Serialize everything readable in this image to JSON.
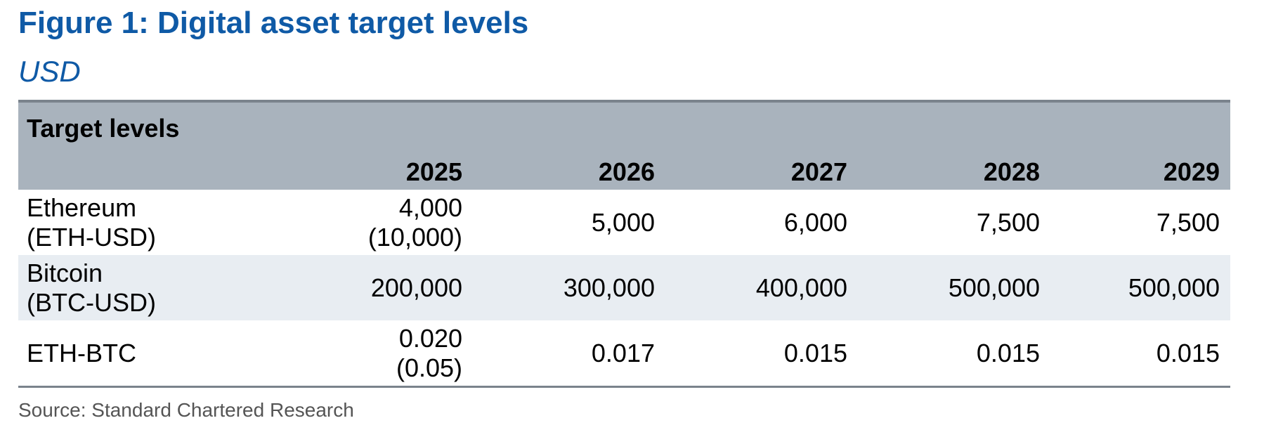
{
  "figure": {
    "title": "Figure 1: Digital asset target levels",
    "subtitle": "USD"
  },
  "table": {
    "group_header": "Target levels",
    "years": [
      "2025",
      "2026",
      "2027",
      "2028",
      "2029"
    ],
    "rows": [
      {
        "label_line1": "Ethereum",
        "label_line2": "(ETH-USD)",
        "v2025_line1": "4,000",
        "v2025_line2": "(10,000)",
        "v2026": "5,000",
        "v2027": "6,000",
        "v2028": "7,500",
        "v2029": "7,500"
      },
      {
        "label_line1": "Bitcoin",
        "label_line2": "(BTC-USD)",
        "v2025_line1": "200,000",
        "v2025_line2": "",
        "v2026": "300,000",
        "v2027": "400,000",
        "v2028": "500,000",
        "v2029": "500,000"
      },
      {
        "label_line1": "ETH-BTC",
        "label_line2": "",
        "v2025_line1": "0.020",
        "v2025_line2": "(0.05)",
        "v2026": "0.017",
        "v2027": "0.015",
        "v2028": "0.015",
        "v2029": "0.015"
      }
    ]
  },
  "source": "Source: Standard Chartered Research",
  "colors": {
    "title": "#0f5aa6",
    "header_bg": "#a9b3bd",
    "alt_row_bg": "#e8edf2",
    "rule": "#7a838c"
  }
}
